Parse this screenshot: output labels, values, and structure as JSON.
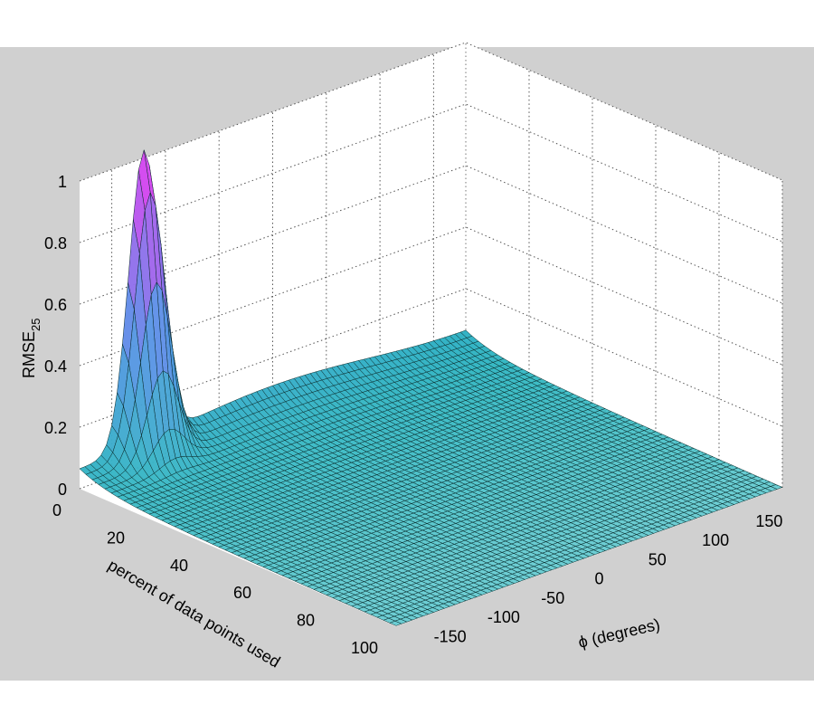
{
  "chart_data": {
    "type": "surface3d",
    "title": "",
    "zlabel": "RMSE",
    "zlabel_subscript": "25",
    "xlabel": "percent of data points used",
    "ylabel": "ϕ (degrees)",
    "x_ticks": [
      "0",
      "20",
      "40",
      "60",
      "80",
      "100"
    ],
    "y_ticks": [
      "-150",
      "-100",
      "-50",
      "0",
      "50",
      "100",
      "150"
    ],
    "z_ticks": [
      "0",
      "0.2",
      "0.4",
      "0.6",
      "0.8",
      "1"
    ],
    "xlim": [
      0,
      100
    ],
    "ylim": [
      -180,
      180
    ],
    "zlim": [
      0,
      1
    ],
    "grid": true,
    "colormap": "cool",
    "colors": {
      "figure_bg": "#ffffff",
      "axes_bg": "#d0d0d0",
      "pane": "#ffffff",
      "low": "#2ec8d0",
      "mid": "#7c6ff0",
      "high": "#e23cf0"
    },
    "description_of_surface": [
      {
        "percent": 0,
        "phi": -120,
        "rmse": 0.95
      },
      {
        "percent": 0,
        "phi": -180,
        "rmse": 0.08
      },
      {
        "percent": 0,
        "phi": 0,
        "rmse": 0.12
      },
      {
        "percent": 0,
        "phi": 60,
        "rmse": 0.08
      },
      {
        "percent": 0,
        "phi": 180,
        "rmse": 0.06
      },
      {
        "percent": 20,
        "phi": -120,
        "rmse": 0.1
      },
      {
        "percent": 50,
        "phi": 0,
        "rmse": 0.02
      },
      {
        "percent": 100,
        "phi": 0,
        "rmse": 0.0
      }
    ]
  }
}
